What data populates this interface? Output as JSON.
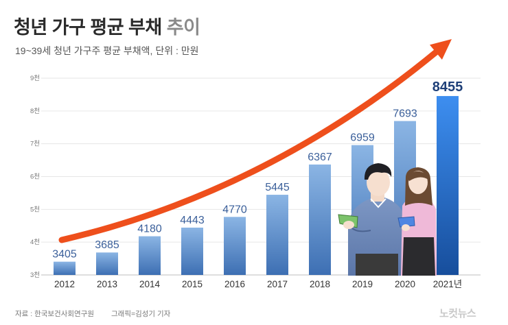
{
  "header": {
    "title_main": "청년 가구 평균 부채",
    "title_accent": "추이",
    "subtitle": "19~39세 청년 가구주 평균 부채액, 단위 : 만원"
  },
  "footer": {
    "source": "자료 : 한국보건사회연구원",
    "credit": "그래픽=김성기 기자",
    "logo": "노컷뉴스"
  },
  "colors": {
    "bar_top": "#8bb5e4",
    "bar_bottom": "#3d6fb3",
    "last_bar_top": "#3d8ef0",
    "last_bar_bottom": "#174e9c",
    "arrow": "#ee4f1c"
  },
  "chart_data": {
    "type": "bar",
    "title": "청년 가구 평균 부채 추이",
    "subtitle": "19~39세 청년 가구주 평균 부채액, 단위 : 만원",
    "categories": [
      "2012",
      "2013",
      "2014",
      "2015",
      "2016",
      "2017",
      "2018",
      "2019",
      "2020",
      "2021년"
    ],
    "values": [
      3405,
      3685,
      4180,
      4443,
      4770,
      5445,
      6367,
      6959,
      7693,
      8455
    ],
    "unit": "만원",
    "ylim": [
      3000,
      9000
    ],
    "yticks": [
      3000,
      4000,
      5000,
      6000,
      7000,
      8000,
      9000
    ],
    "ytick_labels": [
      "3천",
      "4천",
      "5천",
      "6천",
      "7천",
      "8천",
      "9천"
    ],
    "grid": true,
    "trend_arrow": true
  }
}
